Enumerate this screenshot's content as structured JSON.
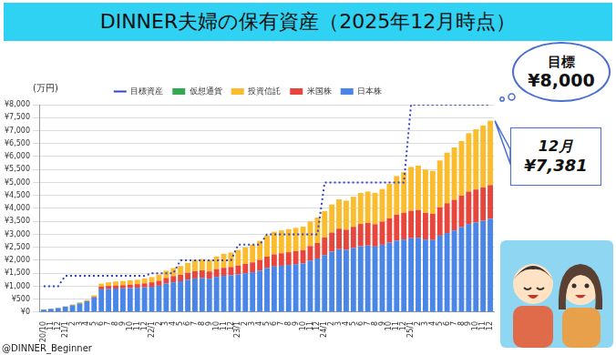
{
  "chart_data": {
    "type": "bar",
    "title": "DINNER夫婦の保有資産（2025年12月時点）",
    "y_label": "(万円)",
    "source": "@DINNER_Beginner",
    "categories": [
      "20/10",
      "11",
      "12",
      "21/1",
      "2",
      "3",
      "4",
      "5",
      "6",
      "7",
      "8",
      "9",
      "10",
      "11",
      "12",
      "22/1",
      "2",
      "3",
      "4",
      "5",
      "6",
      "7",
      "8",
      "9",
      "10",
      "11",
      "12",
      "23/1",
      "2",
      "3",
      "4",
      "5",
      "6",
      "7",
      "8",
      "9",
      "10",
      "11",
      "12",
      "24/1",
      "2",
      "3",
      "4",
      "5",
      "6",
      "7",
      "8",
      "9",
      "10",
      "11",
      "12",
      "25/1",
      "2",
      "3",
      "4",
      "5",
      "6",
      "7",
      "8",
      "9",
      "10",
      "11",
      "12"
    ],
    "series": [
      {
        "name": "日本株",
        "type": "bar",
        "color": "#4a86e8",
        "values": [
          100,
          130,
          160,
          210,
          270,
          340,
          420,
          570,
          880,
          900,
          910,
          920,
          930,
          940,
          960,
          980,
          1020,
          1100,
          1150,
          1190,
          1250,
          1300,
          1320,
          1290,
          1360,
          1400,
          1420,
          1460,
          1500,
          1540,
          1600,
          1700,
          1760,
          1790,
          1820,
          1850,
          1880,
          1990,
          2070,
          2200,
          2330,
          2430,
          2400,
          2470,
          2540,
          2570,
          2530,
          2600,
          2680,
          2760,
          2800,
          2850,
          2870,
          2800,
          2780,
          2950,
          3050,
          3150,
          3280,
          3400,
          3460,
          3520,
          3600
        ]
      },
      {
        "name": "米国株",
        "type": "bar",
        "color": "#e8453c",
        "values": [
          0,
          0,
          0,
          0,
          0,
          0,
          10,
          30,
          100,
          110,
          120,
          120,
          130,
          140,
          150,
          170,
          190,
          220,
          240,
          250,
          270,
          280,
          290,
          280,
          300,
          310,
          320,
          340,
          360,
          380,
          410,
          440,
          470,
          480,
          490,
          500,
          510,
          560,
          600,
          680,
          740,
          790,
          780,
          820,
          860,
          870,
          860,
          890,
          940,
          1000,
          1030,
          1060,
          1070,
          1030,
          1010,
          1090,
          1150,
          1180,
          1210,
          1250,
          1270,
          1290,
          1300
        ]
      },
      {
        "name": "投資信託",
        "type": "bar",
        "color": "#fbbc2d",
        "values": [
          0,
          0,
          10,
          20,
          30,
          40,
          40,
          50,
          120,
          140,
          150,
          160,
          170,
          170,
          190,
          200,
          240,
          280,
          310,
          340,
          380,
          420,
          440,
          430,
          490,
          540,
          560,
          600,
          640,
          680,
          740,
          810,
          870,
          880,
          890,
          900,
          910,
          950,
          980,
          1020,
          1080,
          1130,
          1120,
          1160,
          1200,
          1210,
          1210,
          1260,
          1330,
          1490,
          1570,
          1690,
          1710,
          1670,
          1660,
          1810,
          1950,
          2020,
          2110,
          2250,
          2320,
          2390,
          2481
        ]
      },
      {
        "name": "仮想通貨",
        "type": "bar",
        "color": "#34a853",
        "values": [
          0,
          0,
          0,
          0,
          0,
          0,
          0,
          0,
          0,
          0,
          0,
          0,
          0,
          0,
          0,
          0,
          0,
          0,
          0,
          0,
          0,
          0,
          0,
          0,
          0,
          0,
          0,
          0,
          0,
          0,
          0,
          0,
          0,
          0,
          0,
          0,
          0,
          0,
          0,
          0,
          0,
          0,
          0,
          0,
          0,
          0,
          0,
          0,
          0,
          0,
          0,
          0,
          0,
          0,
          0,
          0,
          0,
          0,
          0,
          0,
          0,
          0,
          0
        ]
      },
      {
        "name": "目標資産",
        "type": "line",
        "color": "#3344cc",
        "line_style": "dotted",
        "marker": "none",
        "values": [
          1000,
          1000,
          1000,
          1400,
          1400,
          1400,
          1400,
          1400,
          1400,
          1400,
          1400,
          1400,
          1400,
          1400,
          1400,
          1500,
          1500,
          1500,
          1500,
          2000,
          2000,
          2000,
          2000,
          2000,
          2000,
          2000,
          2000,
          2600,
          2600,
          2600,
          2600,
          3000,
          3000,
          3000,
          3000,
          3000,
          3000,
          3000,
          3000,
          5000,
          5000,
          5000,
          5000,
          5000,
          5000,
          5000,
          5000,
          5000,
          5000,
          5000,
          5000,
          8000,
          8000,
          8000,
          8000,
          8000,
          8000,
          8000,
          8000,
          8000,
          8000,
          8000,
          8000
        ]
      }
    ],
    "stacked": true,
    "grid": true,
    "legend": "top",
    "ylim": [
      0,
      8000
    ],
    "yticks": [
      {
        "value": 0,
        "label": "¥0"
      },
      {
        "value": 500,
        "label": "¥500"
      },
      {
        "value": 1000,
        "label": "¥1,000"
      },
      {
        "value": 1500,
        "label": "¥1,500"
      },
      {
        "value": 2000,
        "label": "¥2,000"
      },
      {
        "value": 2500,
        "label": "¥2,500"
      },
      {
        "value": 3000,
        "label": "¥3,000"
      },
      {
        "value": 3500,
        "label": "¥3,500"
      },
      {
        "value": 4000,
        "label": "¥4,000"
      },
      {
        "value": 4500,
        "label": "¥4,500"
      },
      {
        "value": 5000,
        "label": "¥5,000"
      },
      {
        "value": 5500,
        "label": "¥5,500"
      },
      {
        "value": 6000,
        "label": "¥6,000"
      },
      {
        "value": 6500,
        "label": "¥6,500"
      },
      {
        "value": 7000,
        "label": "¥7,000"
      },
      {
        "value": 7500,
        "label": "¥7,500"
      },
      {
        "value": 8000,
        "label": "¥8,000"
      }
    ],
    "annotations": [
      {
        "text": "目標",
        "value": 8000,
        "value_label": "¥8,000"
      },
      {
        "text": "12月",
        "value": 7381,
        "value_label": "¥7,381"
      }
    ]
  }
}
